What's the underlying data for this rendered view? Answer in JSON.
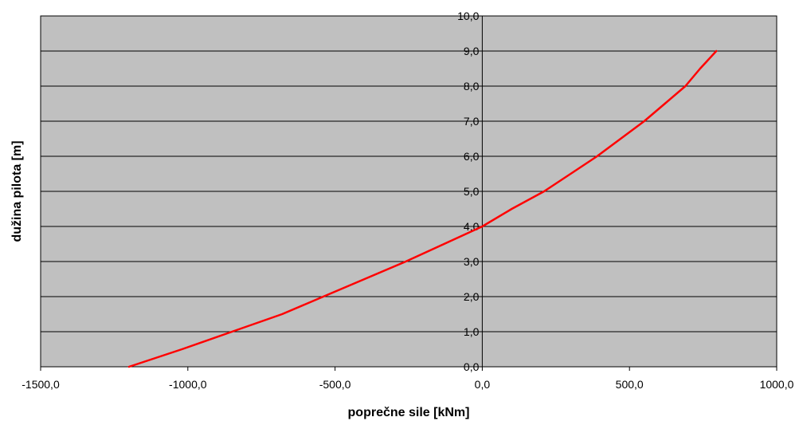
{
  "chart_data": {
    "type": "line",
    "title": "",
    "xlabel": "poprečne sile [kNm]",
    "ylabel": "dužina pilota [m]",
    "xlim": [
      -1500,
      1000
    ],
    "ylim": [
      0,
      10
    ],
    "x_ticks": [
      -1500,
      -1000,
      -500,
      0,
      500,
      1000
    ],
    "y_ticks": [
      0,
      1,
      2,
      3,
      4,
      5,
      6,
      7,
      8,
      9,
      10
    ],
    "x_tick_labels": [
      "-1500,0",
      "-1000,0",
      "-500,0",
      "0,0",
      "500,0",
      "1000,0"
    ],
    "y_tick_labels": [
      "0,0",
      "1,0",
      "2,0",
      "3,0",
      "4,0",
      "5,0",
      "6,0",
      "7,0",
      "8,0",
      "9,0",
      "10,0"
    ],
    "grid": true,
    "legend": "none",
    "series": [
      {
        "x": [
          -1200,
          -1020,
          -850,
          -680,
          -540,
          -400,
          -260,
          -130,
          0,
          100,
          210,
          300,
          390,
          470,
          550,
          620,
          690,
          740,
          795
        ],
        "y": [
          0.0,
          0.5,
          1.0,
          1.5,
          2.0,
          2.5,
          3.0,
          3.5,
          4.0,
          4.5,
          5.0,
          5.5,
          6.0,
          6.5,
          7.0,
          7.5,
          8.0,
          8.5,
          9.0
        ]
      }
    ],
    "colors": {
      "plot_background": "#c0c0c0",
      "gridline": "#000000",
      "line": "#ff0000"
    }
  }
}
